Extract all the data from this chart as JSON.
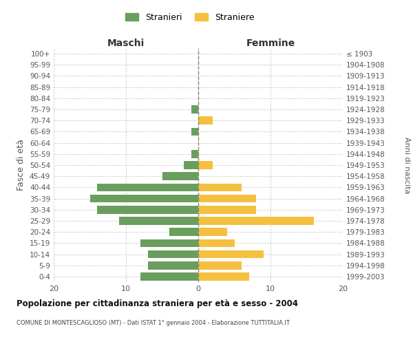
{
  "age_groups": [
    "0-4",
    "5-9",
    "10-14",
    "15-19",
    "20-24",
    "25-29",
    "30-34",
    "35-39",
    "40-44",
    "45-49",
    "50-54",
    "55-59",
    "60-64",
    "65-69",
    "70-74",
    "75-79",
    "80-84",
    "85-89",
    "90-94",
    "95-99",
    "100+"
  ],
  "birth_years": [
    "1999-2003",
    "1994-1998",
    "1989-1993",
    "1984-1988",
    "1979-1983",
    "1974-1978",
    "1969-1973",
    "1964-1968",
    "1959-1963",
    "1954-1958",
    "1949-1953",
    "1944-1948",
    "1939-1943",
    "1934-1938",
    "1929-1933",
    "1924-1928",
    "1919-1923",
    "1914-1918",
    "1909-1913",
    "1904-1908",
    "≤ 1903"
  ],
  "maschi": [
    8,
    7,
    7,
    8,
    4,
    11,
    14,
    15,
    14,
    5,
    2,
    1,
    0,
    1,
    0,
    1,
    0,
    0,
    0,
    0,
    0
  ],
  "femmine": [
    7,
    6,
    9,
    5,
    4,
    16,
    8,
    8,
    6,
    0,
    2,
    0,
    0,
    0,
    2,
    0,
    0,
    0,
    0,
    0,
    0
  ],
  "maschi_color": "#6a9e5e",
  "femmine_color": "#f5c040",
  "title": "Popolazione per cittadinanza straniera per età e sesso - 2004",
  "subtitle": "COMUNE DI MONTESCAGLIOSO (MT) - Dati ISTAT 1° gennaio 2004 - Elaborazione TUTTITALIA.IT",
  "ylabel_left": "Fasce di età",
  "ylabel_right": "Anni di nascita",
  "xlabel_left": "Maschi",
  "xlabel_right": "Femmine",
  "legend_maschi": "Stranieri",
  "legend_femmine": "Straniere",
  "xlim": 20,
  "background_color": "#ffffff",
  "grid_color": "#cccccc",
  "center_line_color": "#888866"
}
